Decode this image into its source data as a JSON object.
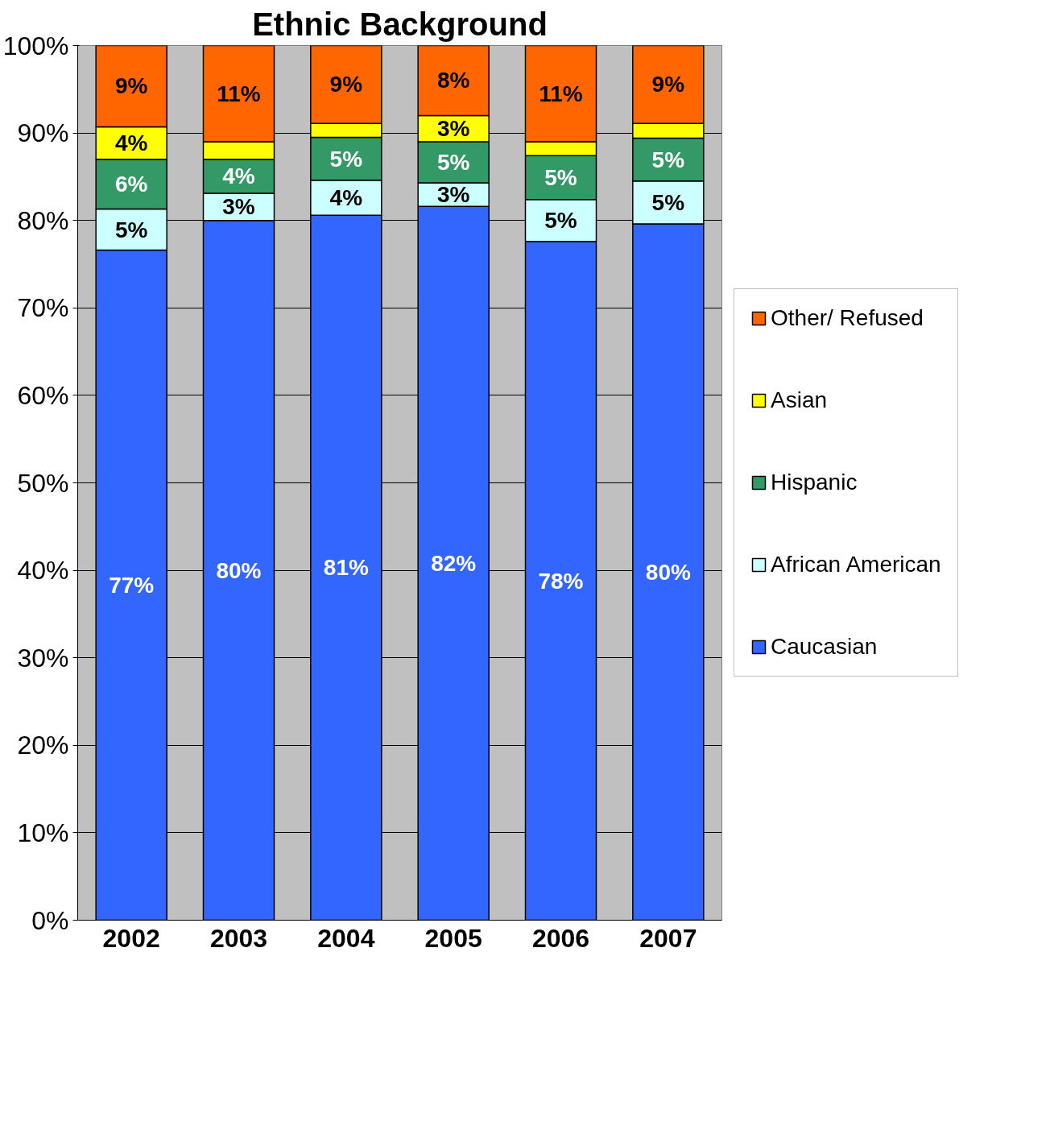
{
  "chart_data": {
    "type": "bar",
    "title": "Ethnic Background",
    "stacked": true,
    "categories": [
      "2002",
      "2003",
      "2004",
      "2005",
      "2006",
      "2007"
    ],
    "series": [
      {
        "name": "Caucasian",
        "color": "#3366ff",
        "values": [
          76.6,
          80.0,
          80.6,
          81.6,
          77.6,
          79.6
        ],
        "value_labels": [
          "77%",
          "80%",
          "81%",
          "82%",
          "78%",
          "80%"
        ]
      },
      {
        "name": "African American",
        "color": "#ccffff",
        "values": [
          4.7,
          3.1,
          4.0,
          2.7,
          4.8,
          4.9
        ],
        "value_labels": [
          "5%",
          "3%",
          "4%",
          "3%",
          "5%",
          "5%"
        ]
      },
      {
        "name": "Hispanic",
        "color": "#339966",
        "values": [
          5.7,
          3.9,
          4.9,
          4.7,
          5.0,
          4.9
        ],
        "value_labels": [
          "6%",
          "4%",
          "5%",
          "5%",
          "5%",
          "5%"
        ]
      },
      {
        "name": "Asian",
        "color": "#ffff00",
        "values": [
          3.7,
          2.0,
          1.6,
          3.0,
          1.6,
          1.7
        ],
        "value_labels": [
          "4%",
          null,
          null,
          "3%",
          null,
          null
        ]
      },
      {
        "name": "Other/ Refused",
        "color": "#ff6600",
        "values": [
          9.3,
          11.0,
          8.9,
          8.0,
          11.0,
          8.9
        ],
        "value_labels": [
          "9%",
          "11%",
          "9%",
          "8%",
          "11%",
          "9%"
        ]
      }
    ],
    "ylim": [
      0,
      100
    ],
    "yticks": [
      {
        "value": 0,
        "label": "0%"
      },
      {
        "value": 10,
        "label": "10%"
      },
      {
        "value": 20,
        "label": "20%"
      },
      {
        "value": 30,
        "label": "30%"
      },
      {
        "value": 40,
        "label": "40%"
      },
      {
        "value": 50,
        "label": "50%"
      },
      {
        "value": 60,
        "label": "60%"
      },
      {
        "value": 70,
        "label": "70%"
      },
      {
        "value": 80,
        "label": "80%"
      },
      {
        "value": 90,
        "label": "90%"
      },
      {
        "value": 100,
        "label": "100%"
      }
    ],
    "grid": "y",
    "legend": "right"
  }
}
